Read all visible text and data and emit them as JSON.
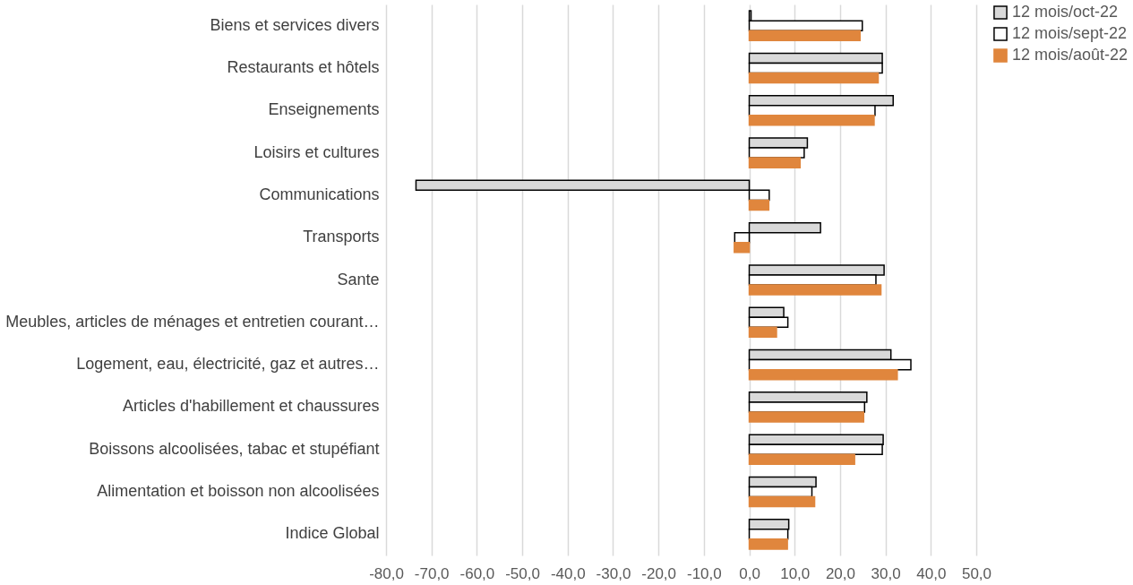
{
  "chart_data": {
    "type": "bar",
    "orientation": "horizontal",
    "categories": [
      "Biens et services divers",
      "Restaurants et hôtels",
      "Enseignements",
      "Loisirs et cultures",
      "Communications",
      "Transports",
      "Sante",
      "Meubles, articles de ménages et entretien courant…",
      "Logement, eau, électricité, gaz et autres…",
      "Articles d'habillement et chaussures",
      "Boissons alcoolisées, tabac et stupéfiant",
      "Alimentation et boisson non alcoolisées",
      "Indice Global"
    ],
    "series": [
      {
        "name": "12 mois/oct-22",
        "color": "#d9d9d9",
        "values": [
          0.4,
          29.3,
          31.7,
          12.8,
          -73.4,
          15.7,
          29.7,
          7.6,
          31.2,
          25.9,
          29.5,
          14.7,
          8.7
        ]
      },
      {
        "name": "12 mois/sept-22",
        "color": "#ffffff",
        "values": [
          24.9,
          29.3,
          27.7,
          12.1,
          4.4,
          -3.2,
          27.9,
          8.5,
          35.6,
          25.4,
          29.3,
          13.8,
          8.5
        ]
      },
      {
        "name": "12 mois/août-22",
        "color": "#e0863d",
        "values": [
          24.4,
          28.4,
          27.5,
          11.2,
          4.3,
          -3.3,
          29.0,
          6.0,
          32.6,
          25.2,
          23.2,
          14.4,
          8.4
        ]
      }
    ],
    "xlim": [
      -80,
      50
    ],
    "xticks": [
      {
        "value": -80,
        "label": "-80,0"
      },
      {
        "value": -70,
        "label": "-70,0"
      },
      {
        "value": -60,
        "label": "-60,0"
      },
      {
        "value": -50,
        "label": "-50,0"
      },
      {
        "value": -40,
        "label": "-40,0"
      },
      {
        "value": -30,
        "label": "-30,0"
      },
      {
        "value": -20,
        "label": "-20,0"
      },
      {
        "value": -10,
        "label": "-10,0"
      },
      {
        "value": 0,
        "label": "0,0"
      },
      {
        "value": 10,
        "label": "10,0"
      },
      {
        "value": 20,
        "label": "20,0"
      },
      {
        "value": 30,
        "label": "30,0"
      },
      {
        "value": 40,
        "label": "40,0"
      },
      {
        "value": 50,
        "label": "50,0"
      }
    ],
    "grid": "x",
    "legend": "right"
  }
}
